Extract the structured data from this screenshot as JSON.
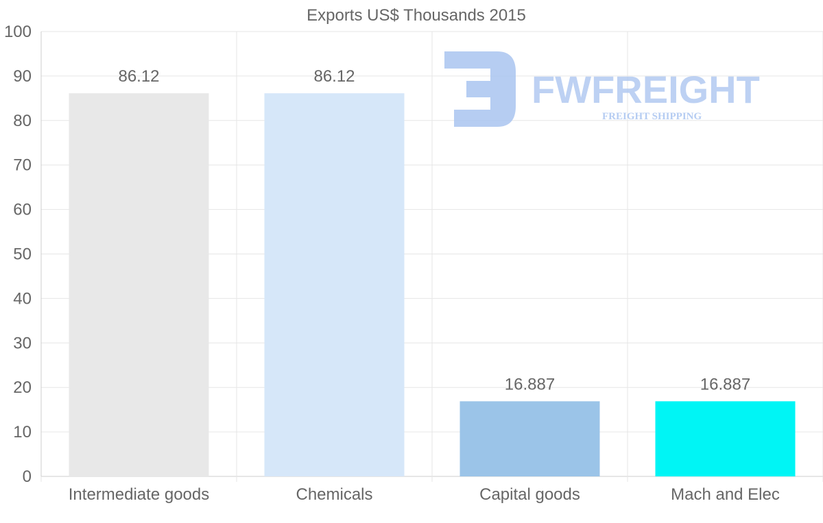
{
  "chart_data": {
    "type": "bar",
    "title": "Exports US$ Thousands 2015",
    "categories": [
      "Intermediate goods",
      "Chemicals",
      "Capital goods",
      "Mach and Elec"
    ],
    "values": [
      86.12,
      86.12,
      16.887,
      16.887
    ],
    "value_labels": [
      "86.12",
      "86.12",
      "16.887",
      "16.887"
    ],
    "bar_colors": [
      "#e8e8e8",
      "#d6e7f9",
      "#9bc4e8",
      "#00f5f5"
    ],
    "ylim": [
      0,
      100
    ],
    "yticks": [
      0,
      10,
      20,
      30,
      40,
      50,
      60,
      70,
      80,
      90,
      100
    ],
    "xlabel": "",
    "ylabel": "",
    "grid": true
  },
  "watermark": {
    "brand": "FWFREIGHT",
    "tagline": "FREIGHT SHIPPING",
    "color": "#a9c4f0"
  }
}
